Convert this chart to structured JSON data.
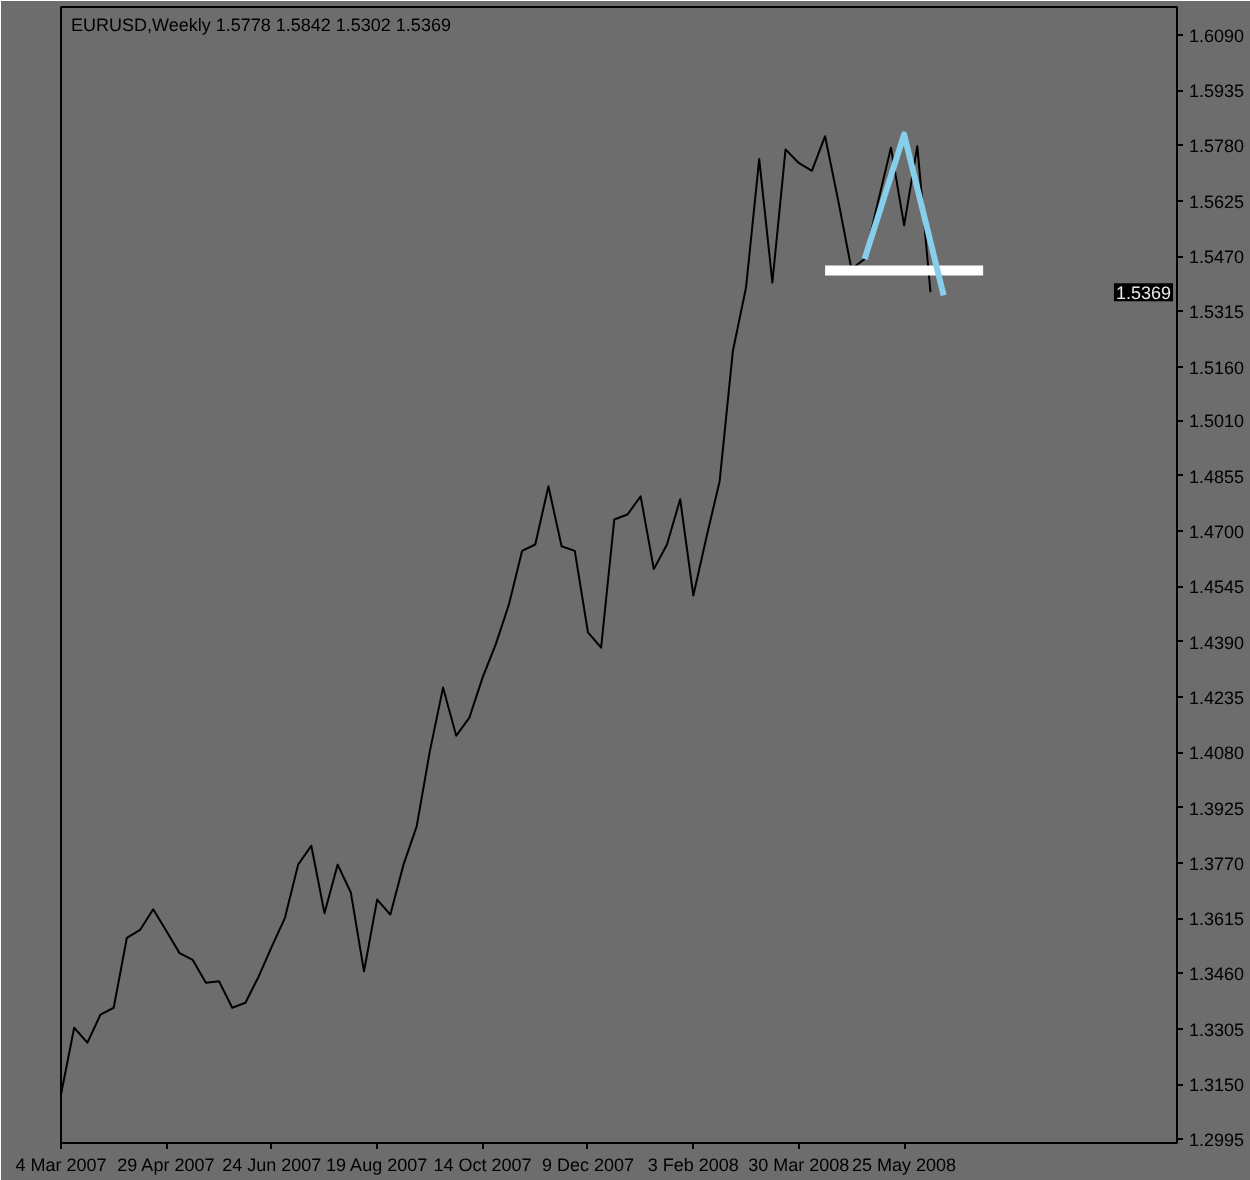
{
  "chart_data": {
    "type": "line",
    "title": "EURUSD,Weekly  1.5778 1.5842 1.5302 1.5369",
    "x": [
      "2007-03-04",
      "2007-03-11",
      "2007-03-18",
      "2007-03-25",
      "2007-04-01",
      "2007-04-08",
      "2007-04-15",
      "2007-04-22",
      "2007-04-29",
      "2007-05-06",
      "2007-05-13",
      "2007-05-20",
      "2007-05-27",
      "2007-06-03",
      "2007-06-10",
      "2007-06-17",
      "2007-06-24",
      "2007-07-01",
      "2007-07-08",
      "2007-07-15",
      "2007-07-22",
      "2007-07-29",
      "2007-08-05",
      "2007-08-12",
      "2007-08-19",
      "2007-08-26",
      "2007-09-02",
      "2007-09-09",
      "2007-09-16",
      "2007-09-23",
      "2007-09-30",
      "2007-10-07",
      "2007-10-14",
      "2007-10-21",
      "2007-10-28",
      "2007-11-04",
      "2007-11-11",
      "2007-11-18",
      "2007-11-25",
      "2007-12-02",
      "2007-12-09",
      "2007-12-16",
      "2007-12-23",
      "2007-12-30",
      "2008-01-06",
      "2008-01-13",
      "2008-01-20",
      "2008-01-27",
      "2008-02-03",
      "2008-02-10",
      "2008-02-17",
      "2008-02-24",
      "2008-03-02",
      "2008-03-09",
      "2008-03-16",
      "2008-03-23",
      "2008-03-30",
      "2008-04-06",
      "2008-04-13",
      "2008-04-20",
      "2008-04-27",
      "2008-05-04",
      "2008-05-11",
      "2008-05-18",
      "2008-05-25",
      "2008-06-01",
      "2008-06-08"
    ],
    "series": [
      {
        "color": "#000000",
        "values": [
          1.3121,
          1.3308,
          1.3266,
          1.3345,
          1.3364,
          1.356,
          1.3582,
          1.364,
          1.3579,
          1.3517,
          1.3498,
          1.3434,
          1.3438,
          1.3364,
          1.3378,
          1.3451,
          1.3535,
          1.3616,
          1.3765,
          1.3818,
          1.3629,
          1.3765,
          1.3687,
          1.3466,
          1.3667,
          1.3625,
          1.3765,
          1.3872,
          1.4083,
          1.4261,
          1.4126,
          1.4177,
          1.4289,
          1.4382,
          1.4494,
          1.4644,
          1.4662,
          1.4825,
          1.4657,
          1.4644,
          1.4416,
          1.4373,
          1.4732,
          1.4746,
          1.4797,
          1.4593,
          1.4662,
          1.4789,
          1.4519,
          1.4683,
          1.484,
          1.5204,
          1.5382,
          1.5742,
          1.5396,
          1.5769,
          1.5731,
          1.5709,
          1.5806,
          1.5625,
          1.5434,
          1.5462,
          1.5619,
          1.5774,
          1.5556,
          1.5778,
          1.5369
        ]
      },
      {
        "color": "#ffffff",
        "x": [
          "2008-04-13",
          "2008-07-06"
        ],
        "values": [
          1.543,
          1.543
        ]
      },
      {
        "color": "#87ceeb",
        "x": [
          "2008-05-04",
          "2008-05-25",
          "2008-06-15"
        ],
        "values": [
          1.5462,
          1.5811,
          1.536
        ]
      }
    ],
    "xlim": [
      "2007-03-04",
      "2008-10-17"
    ],
    "xticks": [
      {
        "value": "2007-03-04",
        "label": "4 Mar 2007"
      },
      {
        "value": "2007-04-29",
        "label": "29 Apr 2007"
      },
      {
        "value": "2007-06-24",
        "label": "24 Jun 2007"
      },
      {
        "value": "2007-08-19",
        "label": "19 Aug 2007"
      },
      {
        "value": "2007-10-14",
        "label": "14 Oct 2007"
      },
      {
        "value": "2007-12-09",
        "label": "9 Dec 2007"
      },
      {
        "value": "2008-02-03",
        "label": "3 Feb 2008"
      },
      {
        "value": "2008-03-30",
        "label": "30 Mar 2008"
      },
      {
        "value": "2008-05-25",
        "label": "25 May 2008"
      }
    ],
    "ylim": [
      1.2985,
      1.6168
    ],
    "yticks": [
      {
        "value": 1.609,
        "label": "1.6090"
      },
      1.5935,
      {
        "value": 1.578,
        "label": "1.5780"
      },
      1.5625,
      {
        "value": 1.547,
        "label": "1.5470"
      },
      1.5315,
      {
        "value": 1.516,
        "label": "1.5160"
      },
      {
        "value": 1.501,
        "label": "1.5010"
      },
      1.4855,
      {
        "value": 1.47,
        "label": "1.4700"
      },
      1.4545,
      {
        "value": 1.439,
        "label": "1.4390"
      },
      1.4235,
      {
        "value": 1.408,
        "label": "1.4080"
      },
      1.3925,
      {
        "value": 1.377,
        "label": "1.3770"
      },
      1.3615,
      {
        "value": 1.346,
        "label": "1.3460"
      },
      1.3305,
      {
        "value": 1.315,
        "label": "1.3150"
      },
      1.2995
    ],
    "annotations": [
      {
        "text": "1.5369",
        "y": 1.5369
      }
    ],
    "grid": false
  }
}
